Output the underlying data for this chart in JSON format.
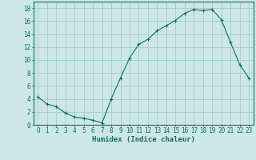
{
  "x": [
    0,
    1,
    2,
    3,
    4,
    5,
    6,
    7,
    8,
    9,
    10,
    11,
    12,
    13,
    14,
    15,
    16,
    17,
    18,
    19,
    20,
    21,
    22,
    23
  ],
  "y": [
    4.3,
    3.2,
    2.8,
    1.8,
    1.2,
    1.0,
    0.7,
    0.3,
    4.0,
    7.2,
    10.3,
    12.4,
    13.2,
    14.5,
    15.3,
    16.1,
    17.2,
    17.8,
    17.6,
    17.8,
    16.2,
    12.7,
    9.3,
    7.2
  ],
  "line_color": "#1a6b5a",
  "marker": "+",
  "marker_size": 3,
  "background_color": "#cce8e4",
  "grid_color": "#aacfcb",
  "xlabel": "Humidex (Indice chaleur)",
  "xlim": [
    -0.5,
    23.5
  ],
  "ylim": [
    0,
    19
  ],
  "yticks": [
    0,
    2,
    4,
    6,
    8,
    10,
    12,
    14,
    16,
    18
  ],
  "xticks": [
    0,
    1,
    2,
    3,
    4,
    5,
    6,
    7,
    8,
    9,
    10,
    11,
    12,
    13,
    14,
    15,
    16,
    17,
    18,
    19,
    20,
    21,
    22,
    23
  ],
  "xtick_labels": [
    "0",
    "1",
    "2",
    "3",
    "4",
    "5",
    "6",
    "7",
    "8",
    "9",
    "10",
    "11",
    "12",
    "13",
    "14",
    "15",
    "16",
    "17",
    "18",
    "19",
    "20",
    "21",
    "22",
    "23"
  ],
  "tick_color": "#1a6b5a",
  "label_fontsize": 6.5,
  "tick_fontsize": 5.5,
  "linewidth": 0.8,
  "markeredgewidth": 0.8
}
